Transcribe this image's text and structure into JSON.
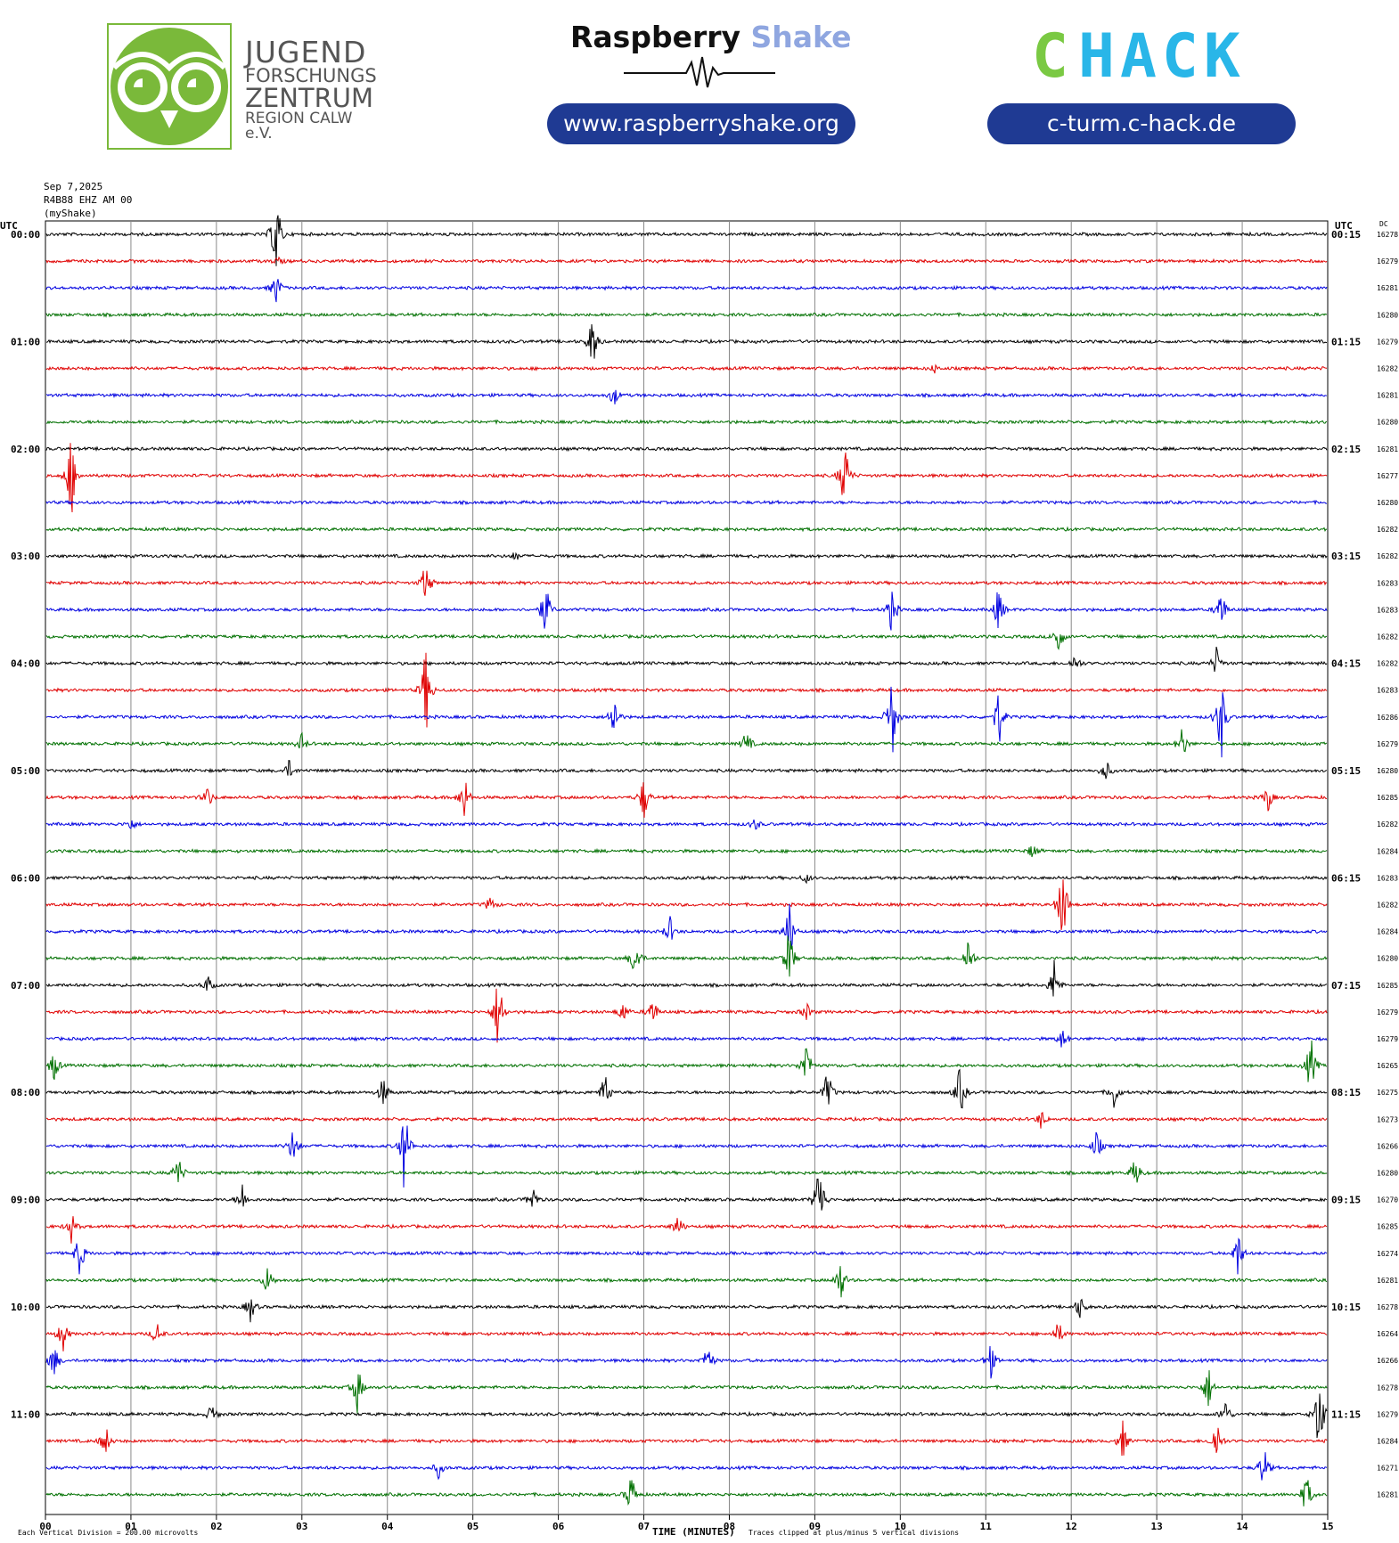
{
  "logos": {
    "jfz": {
      "line1": "JUGEND",
      "line2": "FORSCHUNGS",
      "line3": "ZENTRUM",
      "line4": "REGION CALW e.V.",
      "color": "#7ab93a"
    },
    "raspberry_shake": {
      "word1": "Raspberry",
      "word2": "Shake",
      "url": "www.raspberryshake.org"
    },
    "chack": {
      "word": "CHACK",
      "url": "c-turm.c-hack.de",
      "colors": [
        "#7ac943",
        "#29b6e8"
      ]
    }
  },
  "header": {
    "date": "Sep 7,2025",
    "station": "R4B88 EHZ AM 00",
    "source": "(myShake)",
    "utc_left": "UTC",
    "utc_right": "UTC",
    "dc": "DC"
  },
  "footer": {
    "scale_note": "Each Vertical Division = 200.00 microvolts",
    "xlabel": "TIME (MINUTES)",
    "clip_note": "Traces clipped at plus/minus 5 vertical divisions"
  },
  "chart_data": {
    "type": "line",
    "title": "",
    "xlabel": "TIME (MINUTES)",
    "xlim": [
      0,
      15
    ],
    "x_ticks": [
      "00",
      "01",
      "02",
      "03",
      "04",
      "05",
      "06",
      "07",
      "08",
      "09",
      "10",
      "11",
      "12",
      "13",
      "14",
      "15"
    ],
    "trace_colors": [
      "#000000",
      "#e00000",
      "#0000e0",
      "#007000"
    ],
    "left_labels": [
      "00:00",
      "01:00",
      "02:00",
      "03:00",
      "04:00",
      "05:00",
      "06:00",
      "07:00",
      "08:00",
      "09:00",
      "10:00",
      "11:00"
    ],
    "right_labels": [
      "00:15",
      "01:15",
      "02:15",
      "03:15",
      "04:15",
      "05:15",
      "06:15",
      "07:15",
      "08:15",
      "09:15",
      "10:15",
      "11:15"
    ],
    "dc_offsets": [
      16278,
      16279,
      16281,
      16280,
      16279,
      16282,
      16281,
      16280,
      16281,
      16277,
      16280,
      16282,
      16282,
      16283,
      16283,
      16282,
      16282,
      16283,
      16286,
      16279,
      16280,
      16285,
      16282,
      16284,
      16283,
      16282,
      16284,
      16280,
      16285,
      16279,
      16279,
      16265,
      16275,
      16273,
      16266,
      16280,
      16270,
      16285,
      16274,
      16281,
      16278,
      16264,
      16266,
      16278,
      16279,
      16284,
      16271,
      16281
    ],
    "events": [
      {
        "trace": 0,
        "minute": 2.7,
        "amp": 60
      },
      {
        "trace": 1,
        "minute": 2.72,
        "amp": 5
      },
      {
        "trace": 2,
        "minute": 2.7,
        "amp": 22
      },
      {
        "trace": 4,
        "minute": 6.4,
        "amp": 36
      },
      {
        "trace": 5,
        "minute": 10.4,
        "amp": 5
      },
      {
        "trace": 6,
        "minute": 6.65,
        "amp": 14
      },
      {
        "trace": 9,
        "minute": 0.3,
        "amp": 60
      },
      {
        "trace": 9,
        "minute": 9.35,
        "amp": 52
      },
      {
        "trace": 12,
        "minute": 5.5,
        "amp": 6
      },
      {
        "trace": 13,
        "minute": 4.45,
        "amp": 30
      },
      {
        "trace": 14,
        "minute": 5.85,
        "amp": 38
      },
      {
        "trace": 14,
        "minute": 9.9,
        "amp": 30
      },
      {
        "trace": 14,
        "minute": 11.15,
        "amp": 30
      },
      {
        "trace": 14,
        "minute": 13.75,
        "amp": 30
      },
      {
        "trace": 15,
        "minute": 11.85,
        "amp": 24
      },
      {
        "trace": 16,
        "minute": 12.05,
        "amp": 12
      },
      {
        "trace": 16,
        "minute": 13.7,
        "amp": 20
      },
      {
        "trace": 17,
        "minute": 4.45,
        "amp": 60
      },
      {
        "trace": 18,
        "minute": 6.65,
        "amp": 30
      },
      {
        "trace": 18,
        "minute": 9.9,
        "amp": 60
      },
      {
        "trace": 18,
        "minute": 11.15,
        "amp": 40
      },
      {
        "trace": 18,
        "minute": 13.75,
        "amp": 60
      },
      {
        "trace": 19,
        "minute": 3.0,
        "amp": 12
      },
      {
        "trace": 19,
        "minute": 8.2,
        "amp": 18
      },
      {
        "trace": 19,
        "minute": 13.3,
        "amp": 22
      },
      {
        "trace": 20,
        "minute": 2.85,
        "amp": 12
      },
      {
        "trace": 20,
        "minute": 12.4,
        "amp": 16
      },
      {
        "trace": 21,
        "minute": 1.9,
        "amp": 14
      },
      {
        "trace": 21,
        "minute": 4.9,
        "amp": 30
      },
      {
        "trace": 21,
        "minute": 7.0,
        "amp": 30
      },
      {
        "trace": 21,
        "minute": 14.3,
        "amp": 18
      },
      {
        "trace": 22,
        "minute": 1.0,
        "amp": 8
      },
      {
        "trace": 22,
        "minute": 8.3,
        "amp": 8
      },
      {
        "trace": 23,
        "minute": 11.55,
        "amp": 10
      },
      {
        "trace": 24,
        "minute": 8.9,
        "amp": 6
      },
      {
        "trace": 25,
        "minute": 5.2,
        "amp": 10
      },
      {
        "trace": 25,
        "minute": 11.9,
        "amp": 60
      },
      {
        "trace": 26,
        "minute": 8.7,
        "amp": 40
      },
      {
        "trace": 26,
        "minute": 7.3,
        "amp": 20
      },
      {
        "trace": 27,
        "minute": 6.9,
        "amp": 30
      },
      {
        "trace": 27,
        "minute": 8.7,
        "amp": 40
      },
      {
        "trace": 27,
        "minute": 10.8,
        "amp": 30
      },
      {
        "trace": 28,
        "minute": 1.9,
        "amp": 12
      },
      {
        "trace": 28,
        "minute": 11.8,
        "amp": 30
      },
      {
        "trace": 29,
        "minute": 5.3,
        "amp": 60
      },
      {
        "trace": 29,
        "minute": 6.75,
        "amp": 16
      },
      {
        "trace": 29,
        "minute": 7.1,
        "amp": 20
      },
      {
        "trace": 29,
        "minute": 8.9,
        "amp": 12
      },
      {
        "trace": 30,
        "minute": 11.9,
        "amp": 14
      },
      {
        "trace": 31,
        "minute": 0.1,
        "amp": 20
      },
      {
        "trace": 31,
        "minute": 8.9,
        "amp": 34
      },
      {
        "trace": 31,
        "minute": 14.8,
        "amp": 40
      },
      {
        "trace": 32,
        "minute": 3.95,
        "amp": 20
      },
      {
        "trace": 32,
        "minute": 6.55,
        "amp": 28
      },
      {
        "trace": 32,
        "minute": 10.7,
        "amp": 36
      },
      {
        "trace": 32,
        "minute": 9.15,
        "amp": 30
      },
      {
        "trace": 32,
        "minute": 12.5,
        "amp": 20
      },
      {
        "trace": 33,
        "minute": 11.65,
        "amp": 12
      },
      {
        "trace": 34,
        "minute": 2.9,
        "amp": 26
      },
      {
        "trace": 34,
        "minute": 4.2,
        "amp": 60
      },
      {
        "trace": 34,
        "minute": 12.3,
        "amp": 20
      },
      {
        "trace": 35,
        "minute": 1.55,
        "amp": 24
      },
      {
        "trace": 35,
        "minute": 12.75,
        "amp": 22
      },
      {
        "trace": 36,
        "minute": 2.3,
        "amp": 20
      },
      {
        "trace": 36,
        "minute": 5.7,
        "amp": 18
      },
      {
        "trace": 36,
        "minute": 9.05,
        "amp": 60
      },
      {
        "trace": 37,
        "minute": 0.3,
        "amp": 20
      },
      {
        "trace": 37,
        "minute": 7.4,
        "amp": 16
      },
      {
        "trace": 38,
        "minute": 0.4,
        "amp": 30
      },
      {
        "trace": 38,
        "minute": 13.95,
        "amp": 30
      },
      {
        "trace": 39,
        "minute": 2.6,
        "amp": 20
      },
      {
        "trace": 39,
        "minute": 9.3,
        "amp": 28
      },
      {
        "trace": 40,
        "minute": 2.4,
        "amp": 18
      },
      {
        "trace": 40,
        "minute": 12.1,
        "amp": 16
      },
      {
        "trace": 41,
        "minute": 0.2,
        "amp": 24
      },
      {
        "trace": 41,
        "minute": 1.3,
        "amp": 16
      },
      {
        "trace": 41,
        "minute": 11.85,
        "amp": 16
      },
      {
        "trace": 42,
        "minute": 0.1,
        "amp": 24
      },
      {
        "trace": 42,
        "minute": 7.75,
        "amp": 22
      },
      {
        "trace": 42,
        "minute": 11.05,
        "amp": 26
      },
      {
        "trace": 43,
        "minute": 3.65,
        "amp": 32
      },
      {
        "trace": 43,
        "minute": 13.6,
        "amp": 30
      },
      {
        "trace": 44,
        "minute": 1.95,
        "amp": 14
      },
      {
        "trace": 44,
        "minute": 14.9,
        "amp": 60
      },
      {
        "trace": 44,
        "minute": 13.8,
        "amp": 20
      },
      {
        "trace": 45,
        "minute": 0.7,
        "amp": 22
      },
      {
        "trace": 45,
        "minute": 12.6,
        "amp": 24
      },
      {
        "trace": 45,
        "minute": 13.7,
        "amp": 30
      },
      {
        "trace": 46,
        "minute": 4.6,
        "amp": 12
      },
      {
        "trace": 46,
        "minute": 14.25,
        "amp": 30
      },
      {
        "trace": 47,
        "minute": 6.85,
        "amp": 30
      },
      {
        "trace": 47,
        "minute": 14.75,
        "amp": 30
      }
    ]
  }
}
